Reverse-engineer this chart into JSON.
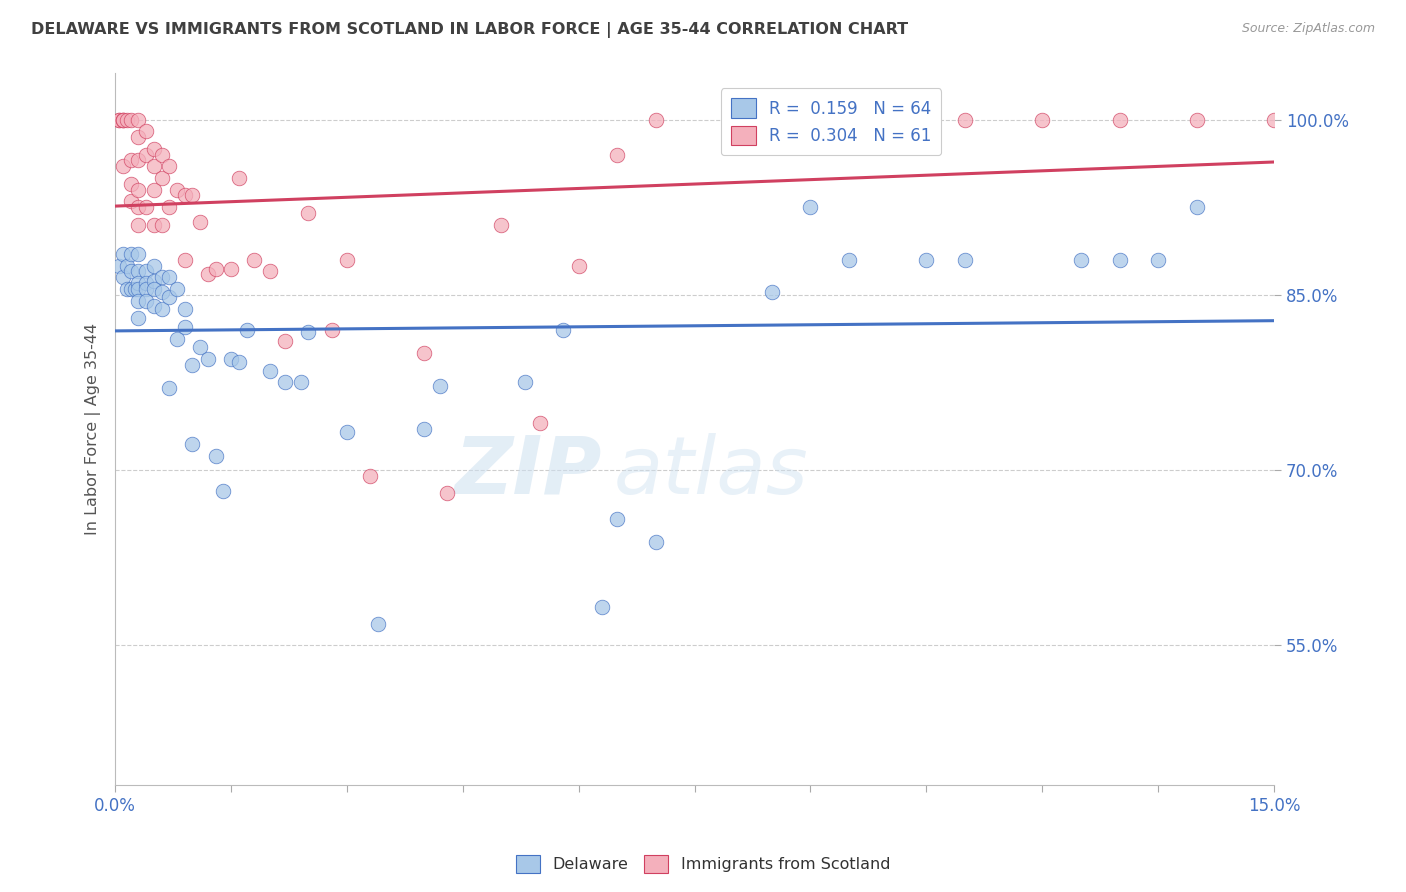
{
  "title": "DELAWARE VS IMMIGRANTS FROM SCOTLAND IN LABOR FORCE | AGE 35-44 CORRELATION CHART",
  "source": "Source: ZipAtlas.com",
  "ylabel": "In Labor Force | Age 35-44",
  "xlim": [
    0.0,
    0.15
  ],
  "ylim": [
    0.43,
    1.04
  ],
  "yticks": [
    0.55,
    0.7,
    0.85,
    1.0
  ],
  "ytick_labels": [
    "55.0%",
    "70.0%",
    "85.0%",
    "100.0%"
  ],
  "xticks": [
    0.0,
    0.015,
    0.03,
    0.045,
    0.06,
    0.075,
    0.09,
    0.105,
    0.12,
    0.135,
    0.15
  ],
  "delaware_color": "#a8c8e8",
  "scotland_color": "#f4b0bc",
  "trend_blue": "#4472c4",
  "trend_pink": "#d04060",
  "legend_r_blue": "0.159",
  "legend_n_blue": "64",
  "legend_r_pink": "0.304",
  "legend_n_pink": "61",
  "watermark_zip": "ZIP",
  "watermark_atlas": "atlas",
  "background_color": "#ffffff",
  "grid_color": "#c8c8c8",
  "title_color": "#404040",
  "axis_label_color": "#4472c4",
  "delaware_x": [
    0.0005,
    0.001,
    0.001,
    0.0015,
    0.0015,
    0.002,
    0.002,
    0.002,
    0.0025,
    0.003,
    0.003,
    0.003,
    0.003,
    0.003,
    0.003,
    0.004,
    0.004,
    0.004,
    0.004,
    0.005,
    0.005,
    0.005,
    0.005,
    0.006,
    0.006,
    0.006,
    0.007,
    0.007,
    0.007,
    0.008,
    0.008,
    0.009,
    0.009,
    0.01,
    0.01,
    0.011,
    0.012,
    0.013,
    0.014,
    0.015,
    0.016,
    0.017,
    0.02,
    0.022,
    0.024,
    0.025,
    0.03,
    0.034,
    0.04,
    0.042,
    0.053,
    0.058,
    0.063,
    0.065,
    0.07,
    0.085,
    0.09,
    0.095,
    0.105,
    0.11,
    0.125,
    0.13,
    0.135,
    0.14
  ],
  "delaware_y": [
    0.875,
    0.885,
    0.865,
    0.875,
    0.855,
    0.885,
    0.87,
    0.855,
    0.855,
    0.885,
    0.87,
    0.86,
    0.855,
    0.845,
    0.83,
    0.87,
    0.86,
    0.855,
    0.845,
    0.875,
    0.862,
    0.855,
    0.84,
    0.865,
    0.852,
    0.838,
    0.865,
    0.848,
    0.77,
    0.855,
    0.812,
    0.838,
    0.822,
    0.722,
    0.79,
    0.805,
    0.795,
    0.712,
    0.682,
    0.795,
    0.792,
    0.82,
    0.785,
    0.775,
    0.775,
    0.818,
    0.732,
    0.568,
    0.735,
    0.772,
    0.775,
    0.82,
    0.582,
    0.658,
    0.638,
    0.852,
    0.925,
    0.88,
    0.88,
    0.88,
    0.88,
    0.88,
    0.88,
    0.925
  ],
  "scotland_x": [
    0.0005,
    0.0005,
    0.001,
    0.001,
    0.001,
    0.001,
    0.0015,
    0.002,
    0.002,
    0.002,
    0.002,
    0.003,
    0.003,
    0.003,
    0.003,
    0.003,
    0.003,
    0.004,
    0.004,
    0.004,
    0.005,
    0.005,
    0.005,
    0.005,
    0.006,
    0.006,
    0.006,
    0.007,
    0.007,
    0.008,
    0.009,
    0.009,
    0.01,
    0.011,
    0.012,
    0.013,
    0.015,
    0.016,
    0.018,
    0.02,
    0.022,
    0.025,
    0.028,
    0.03,
    0.033,
    0.04,
    0.043,
    0.05,
    0.055,
    0.06,
    0.065,
    0.07,
    0.08,
    0.085,
    0.09,
    0.095,
    0.11,
    0.12,
    0.13,
    0.14,
    0.15
  ],
  "scotland_y": [
    1.0,
    1.0,
    1.0,
    1.0,
    1.0,
    0.96,
    1.0,
    1.0,
    0.965,
    0.945,
    0.93,
    1.0,
    0.985,
    0.965,
    0.94,
    0.925,
    0.91,
    0.99,
    0.97,
    0.925,
    0.975,
    0.96,
    0.94,
    0.91,
    0.97,
    0.95,
    0.91,
    0.96,
    0.925,
    0.94,
    0.88,
    0.935,
    0.935,
    0.912,
    0.868,
    0.872,
    0.872,
    0.95,
    0.88,
    0.87,
    0.81,
    0.92,
    0.82,
    0.88,
    0.695,
    0.8,
    0.68,
    0.91,
    0.74,
    0.875,
    0.97,
    1.0,
    1.0,
    1.0,
    1.0,
    1.0,
    1.0,
    1.0,
    1.0,
    1.0,
    1.0
  ]
}
